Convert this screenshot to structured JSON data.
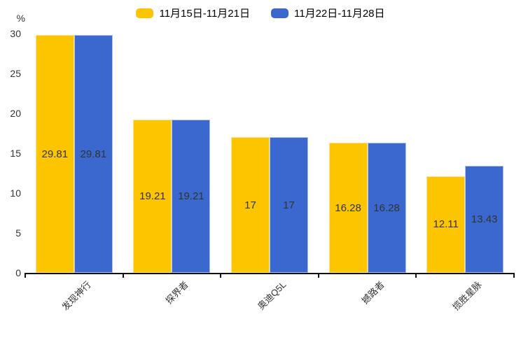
{
  "chart_data": {
    "type": "bar",
    "title": "",
    "categories": [
      "发现神行",
      "探界者",
      "奥迪Q5L",
      "撼路者",
      "揽胜星脉"
    ],
    "series": [
      {
        "name": "11月15日-11月21日",
        "color": "#FDC500",
        "edge_color": "#FFE18F",
        "values": [
          29.81,
          19.21,
          17,
          16.28,
          12.11
        ]
      },
      {
        "name": "11月22日-11月28日",
        "color": "#3A68CE",
        "edge_color": "#AEC2EC",
        "values": [
          29.81,
          19.21,
          17,
          16.28,
          13.43
        ]
      }
    ],
    "xlabel": "",
    "ylabel": "%",
    "ylim": [
      0,
      30
    ],
    "yticks": [
      0,
      5,
      10,
      15,
      20,
      25,
      30
    ],
    "grid": false,
    "legend_position": "top",
    "value_labels": "centered-inside-bars",
    "bar_label_color": "#333333",
    "axis_color": "#111111"
  }
}
